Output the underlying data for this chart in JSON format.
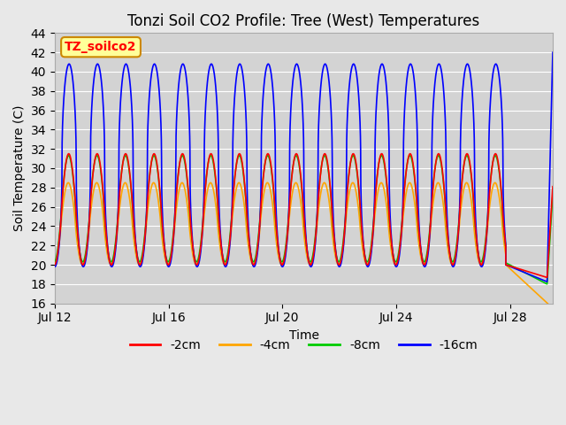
{
  "title": "Tonzi Soil CO2 Profile: Tree (West) Temperatures",
  "xlabel": "Time",
  "ylabel": "Soil Temperature (C)",
  "ylim": [
    16,
    44
  ],
  "yticks": [
    16,
    18,
    20,
    22,
    24,
    26,
    28,
    30,
    32,
    34,
    36,
    38,
    40,
    42,
    44
  ],
  "xtick_positions": [
    0,
    4,
    8,
    12,
    16
  ],
  "xtick_labels": [
    "Jul 12",
    "Jul 16",
    "Jul 20",
    "Jul 24",
    "Jul 28"
  ],
  "legend_label": "TZ_soilco2",
  "line_colors": [
    "#ff0000",
    "#ffa500",
    "#00cc00",
    "#0000ff"
  ],
  "line_labels": [
    "-2cm",
    "-4cm",
    "-8cm",
    "-16cm"
  ],
  "background_color": "#e8e8e8",
  "plot_bg_color": "#d3d3d3",
  "grid_color": "#ffffff",
  "legend_box_facecolor": "#ffff99",
  "legend_box_edgecolor": "#cc8800",
  "xlim": [
    0,
    17.5
  ],
  "trough_blue": 19.8,
  "trough_red": 20.0,
  "trough_green": 20.3,
  "trough_orange": 20.0,
  "amp_blue": 21.0,
  "amp_red": 11.5,
  "amp_green": 11.0,
  "amp_orange": 8.5,
  "phase_blue": 0.0,
  "phase_red": 0.08,
  "phase_green": 0.12,
  "phase_orange": 0.18,
  "sharp_blue": 0.45,
  "sharp_red": 0.88,
  "sharp_green": 0.85,
  "sharp_orange": 0.85,
  "cutoff_t": 15.85,
  "n_pts": 5000,
  "t_end": 17.5,
  "linewidth": 1.2,
  "title_fontsize": 12,
  "axis_label_fontsize": 10,
  "legend_fontsize": 10,
  "annotation_fontsize": 10
}
